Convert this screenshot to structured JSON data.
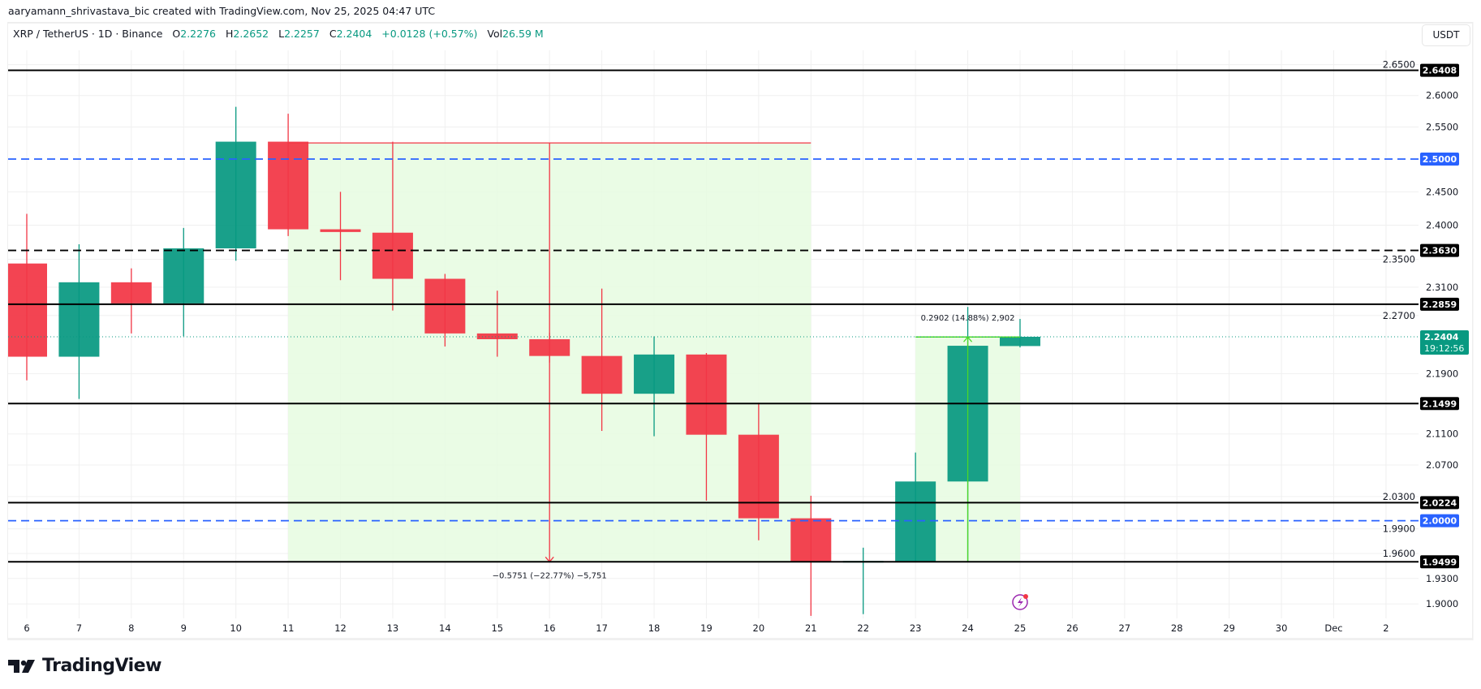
{
  "credit": "aaryamann_shrivastava_bic created with TradingView.com, Nov 25, 2025 04:47 UTC",
  "legend": {
    "symbol": "XRP / TetherUS · 1D · Binance",
    "o_label": "O",
    "o": "2.2276",
    "h_label": "H",
    "h": "2.2652",
    "l_label": "L",
    "l": "2.2257",
    "c_label": "C",
    "c": "2.2404",
    "change": "+0.0128 (+0.57%)",
    "vol_label": "Vol",
    "vol": "26.59 M"
  },
  "currency_button": "USDT",
  "brand": "TradingView",
  "chart_data": {
    "type": "candlestick",
    "y_scale": "log",
    "ylim": [
      1.87,
      2.66
    ],
    "grid": true,
    "colors": {
      "up": "#089981",
      "down": "#f23645",
      "measure_fill": "#e6fbe0",
      "measure_down_line": "#f23645",
      "measure_up_line": "#4cd827",
      "dashed_blue": "#2962ff",
      "level": "#000000"
    },
    "x_tick_labels": [
      "6",
      "7",
      "8",
      "9",
      "10",
      "11",
      "12",
      "13",
      "14",
      "15",
      "16",
      "17",
      "18",
      "19",
      "20",
      "21",
      "22",
      "23",
      "24",
      "25",
      "26",
      "27",
      "28",
      "29",
      "30",
      "Dec",
      "2"
    ],
    "y_tick_labels": [
      "2.6500",
      "2.6000",
      "2.5500",
      "2.4500",
      "2.4000",
      "2.3500",
      "2.3100",
      "2.2700",
      "2.1900",
      "2.1100",
      "2.0700",
      "2.0300",
      "1.9900",
      "1.9600",
      "1.9300",
      "1.9000"
    ],
    "candles": [
      {
        "date": "6",
        "o": 2.344,
        "h": 2.417,
        "l": 2.181,
        "c": 2.213
      },
      {
        "date": "7",
        "o": 2.213,
        "h": 2.372,
        "l": 2.156,
        "c": 2.317
      },
      {
        "date": "8",
        "o": 2.317,
        "h": 2.337,
        "l": 2.245,
        "c": 2.287
      },
      {
        "date": "9",
        "o": 2.287,
        "h": 2.396,
        "l": 2.241,
        "c": 2.366
      },
      {
        "date": "10",
        "o": 2.366,
        "h": 2.582,
        "l": 2.348,
        "c": 2.527
      },
      {
        "date": "11",
        "o": 2.527,
        "h": 2.571,
        "l": 2.384,
        "c": 2.394
      },
      {
        "date": "12",
        "o": 2.394,
        "h": 2.45,
        "l": 2.32,
        "c": 2.39
      },
      {
        "date": "13",
        "o": 2.389,
        "h": 2.527,
        "l": 2.277,
        "c": 2.322
      },
      {
        "date": "14",
        "o": 2.322,
        "h": 2.329,
        "l": 2.227,
        "c": 2.245
      },
      {
        "date": "15",
        "o": 2.245,
        "h": 2.305,
        "l": 2.213,
        "c": 2.237
      },
      {
        "date": "16",
        "o": 2.237,
        "h": 2.246,
        "l": 2.205,
        "c": 2.214
      },
      {
        "date": "17",
        "o": 2.214,
        "h": 2.308,
        "l": 2.114,
        "c": 2.163
      },
      {
        "date": "18",
        "o": 2.163,
        "h": 2.241,
        "l": 2.107,
        "c": 2.216
      },
      {
        "date": "19",
        "o": 2.216,
        "h": 2.218,
        "l": 2.025,
        "c": 2.109
      },
      {
        "date": "20",
        "o": 2.109,
        "h": 2.151,
        "l": 1.976,
        "c": 2.003
      },
      {
        "date": "21",
        "o": 2.003,
        "h": 2.031,
        "l": 1.886,
        "c": 1.95
      },
      {
        "date": "22",
        "o": 1.95,
        "h": 1.967,
        "l": 1.888,
        "c": 1.951
      },
      {
        "date": "23",
        "o": 1.95,
        "h": 2.086,
        "l": 1.95,
        "c": 2.049
      },
      {
        "date": "24",
        "o": 2.049,
        "h": 2.282,
        "l": 1.95,
        "c": 2.228
      },
      {
        "date": "25",
        "o": 2.2276,
        "h": 2.2652,
        "l": 2.2257,
        "c": 2.2404
      }
    ],
    "levels": [
      {
        "price": 2.6408,
        "label": "2.6408",
        "style": "solid",
        "color": "#000000"
      },
      {
        "price": 2.5,
        "label": "2.5000",
        "style": "dashed",
        "color": "#2962ff"
      },
      {
        "price": 2.363,
        "label": "2.3630",
        "style": "dashed",
        "color": "#000000"
      },
      {
        "price": 2.2859,
        "label": "2.2859",
        "style": "solid",
        "color": "#000000"
      },
      {
        "price": 2.1499,
        "label": "2.1499",
        "style": "solid",
        "color": "#000000"
      },
      {
        "price": 2.0224,
        "label": "2.0224",
        "style": "solid",
        "color": "#000000"
      },
      {
        "price": 2.0,
        "label": "2.0000",
        "style": "dashed",
        "color": "#2962ff"
      },
      {
        "price": 1.9499,
        "label": "1.9499",
        "style": "solid",
        "color": "#000000"
      }
    ],
    "last_price": {
      "price": 2.2404,
      "label": "2.2404",
      "countdown": "19:12:56",
      "color": "#089981"
    },
    "measures": [
      {
        "from_date": "11",
        "to_date": "21",
        "arrow_date": "16",
        "start": 2.525,
        "end": 1.9499,
        "label": "−0.5751 (−22.77%) −5,751",
        "line_color": "#f23645"
      },
      {
        "from_date": "23",
        "to_date": "25",
        "arrow_date": "24",
        "start": 1.9499,
        "end": 2.2401,
        "label": "0.2902 (14.88%) 2,902",
        "line_color": "#4cd827"
      }
    ],
    "event_marker_date": "25"
  }
}
